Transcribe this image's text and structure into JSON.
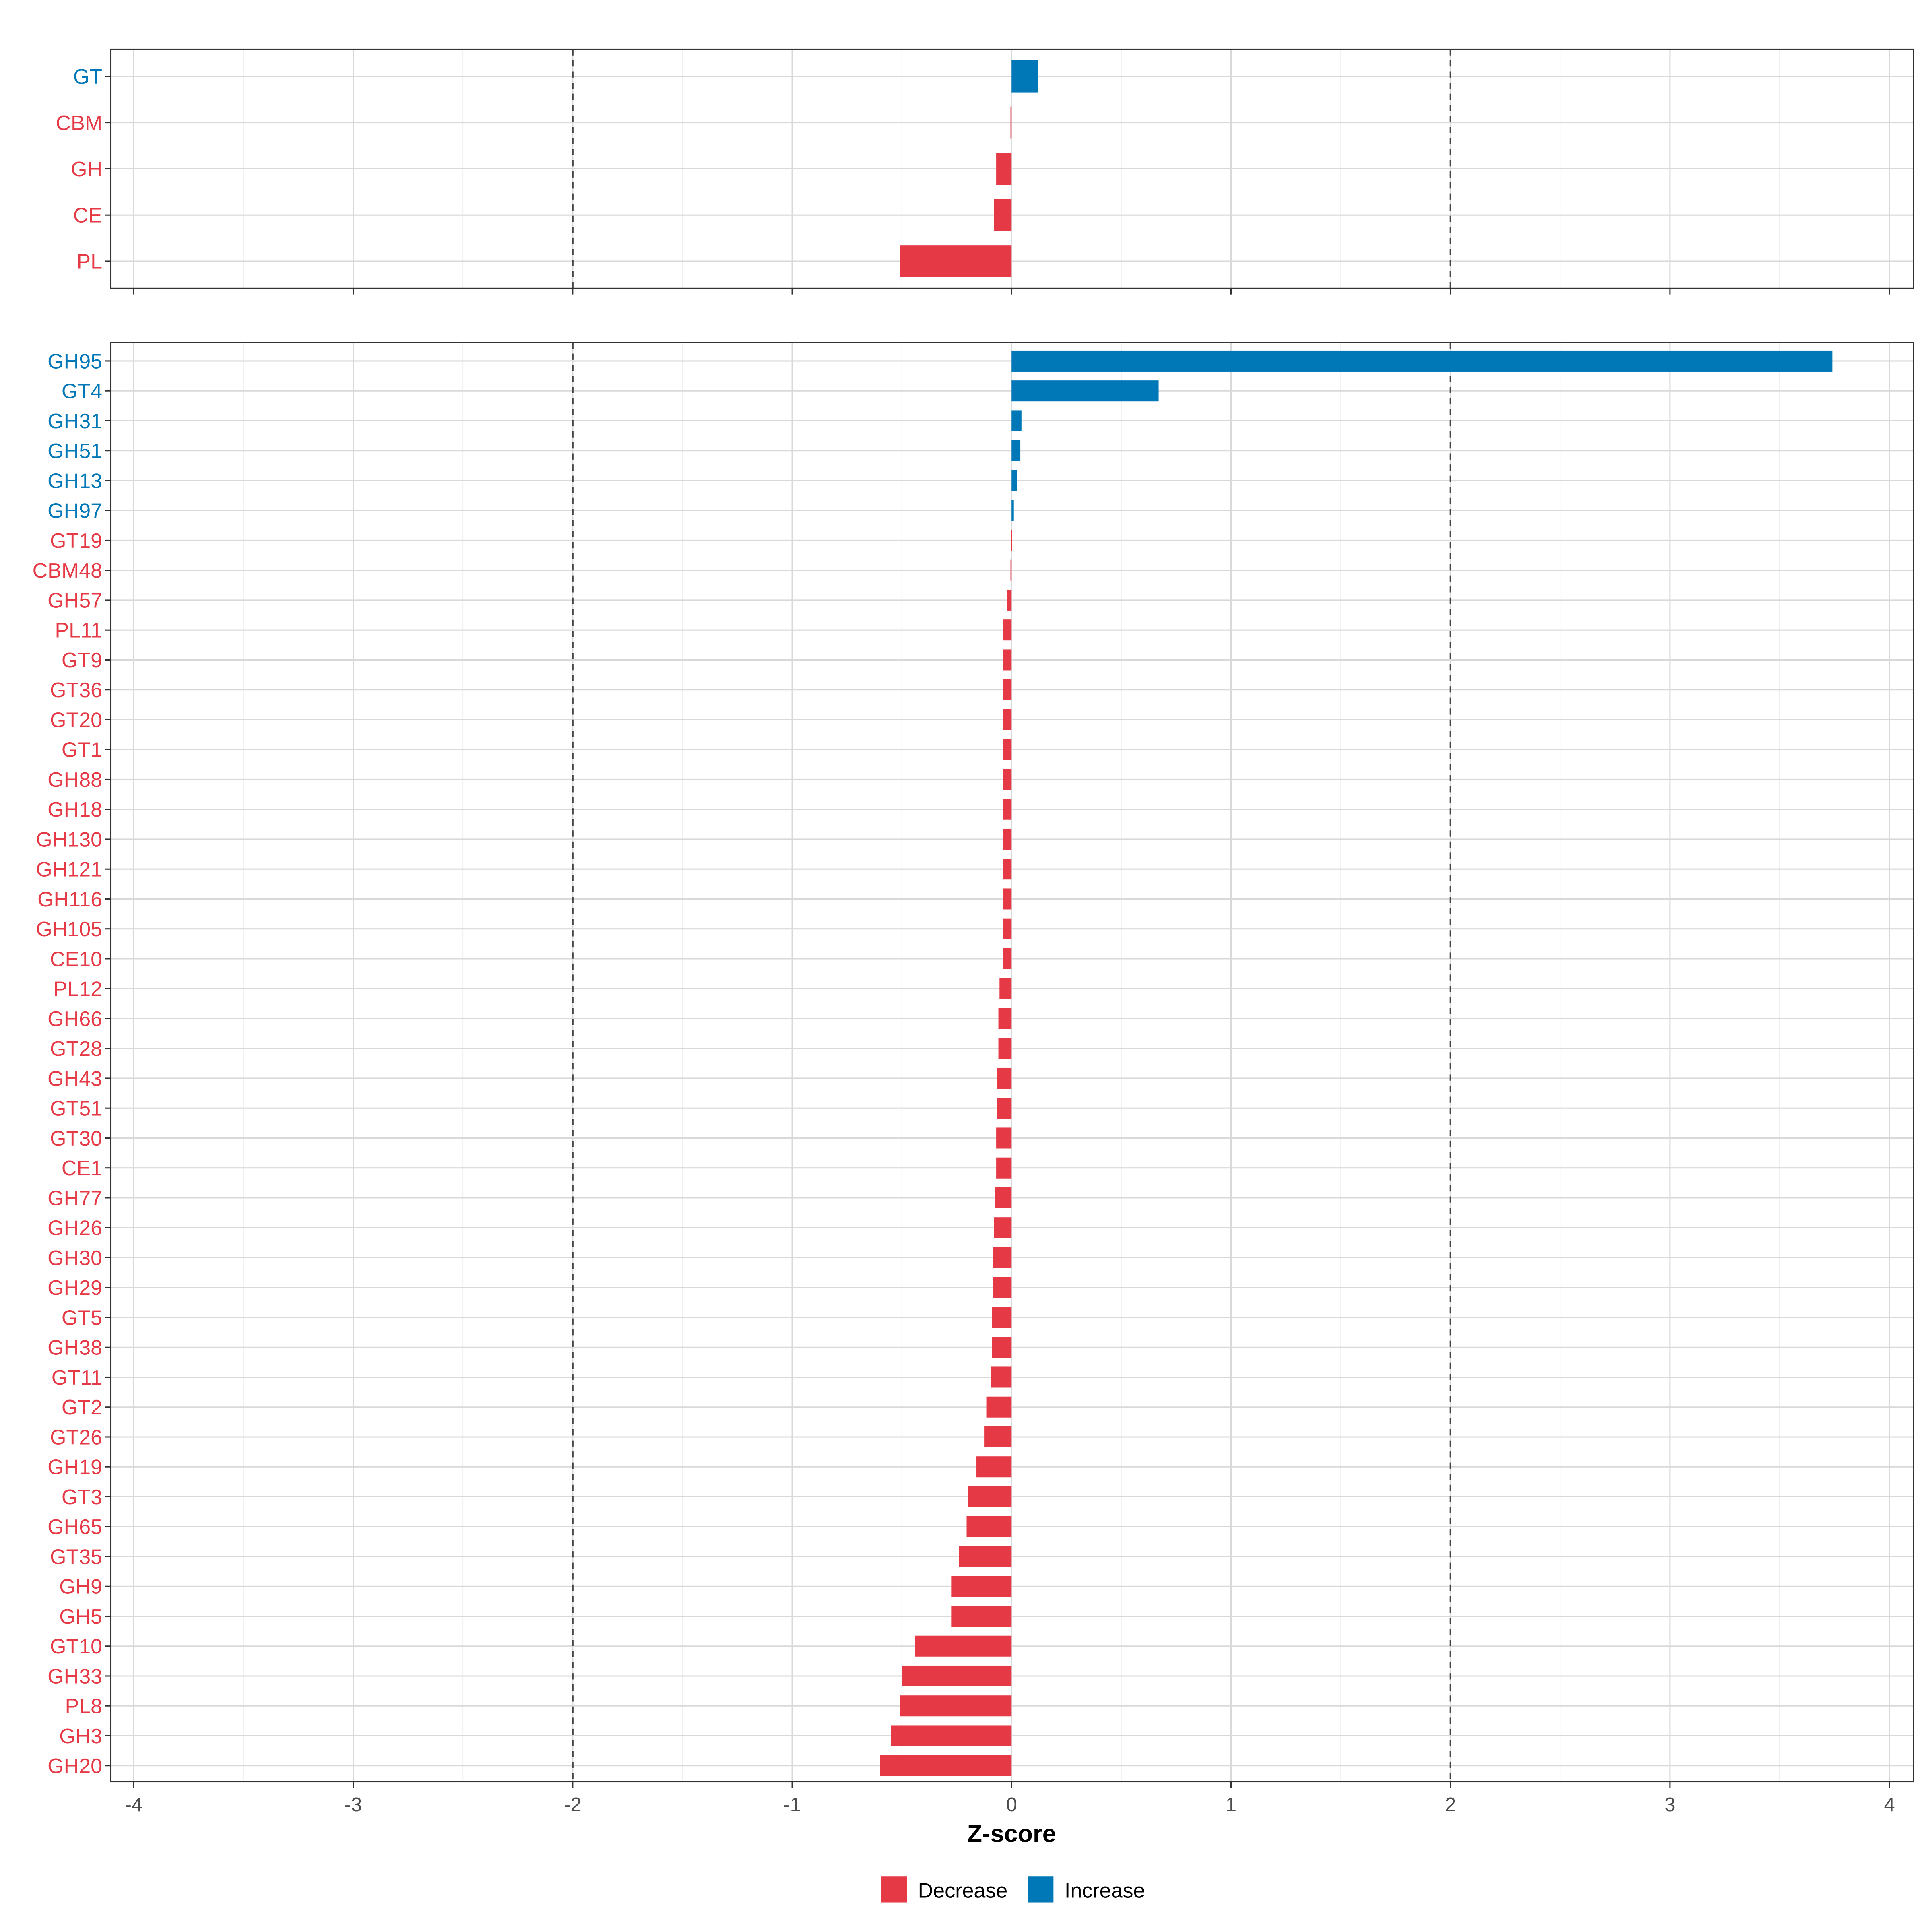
{
  "colors": {
    "decrease": "#E63946",
    "increase": "#0077B6",
    "grid": "#D9D9D9",
    "frame": "#333333"
  },
  "chart_data": [
    {
      "type": "bar",
      "orientation": "horizontal",
      "panel": "top",
      "categories": [
        "GT",
        "CBM",
        "GH",
        "CE",
        "PL"
      ],
      "values": [
        0.12,
        -0.005,
        -0.07,
        -0.08,
        -0.51
      ],
      "xlim": [
        -4,
        4
      ],
      "reference_lines": [
        -2,
        2
      ]
    },
    {
      "type": "bar",
      "orientation": "horizontal",
      "panel": "bottom",
      "categories": [
        "GH95",
        "GT4",
        "GH31",
        "GH51",
        "GH13",
        "GH97",
        "GT19",
        "CBM48",
        "GH57",
        "PL11",
        "GT9",
        "GT36",
        "GT20",
        "GT1",
        "GH88",
        "GH18",
        "GH130",
        "GH121",
        "GH116",
        "GH105",
        "CE10",
        "PL12",
        "GH66",
        "GT28",
        "GH43",
        "GT51",
        "GT30",
        "CE1",
        "GH77",
        "GH26",
        "GH30",
        "GH29",
        "GT5",
        "GH38",
        "GT11",
        "GT2",
        "GT26",
        "GH19",
        "GT3",
        "GH65",
        "GT35",
        "GH9",
        "GH5",
        "GT10",
        "GH33",
        "PL8",
        "GH3",
        "GH20"
      ],
      "values": [
        3.74,
        0.67,
        0.045,
        0.04,
        0.025,
        0.01,
        -0.001,
        -0.005,
        -0.02,
        -0.04,
        -0.04,
        -0.04,
        -0.04,
        -0.04,
        -0.04,
        -0.04,
        -0.04,
        -0.04,
        -0.04,
        -0.04,
        -0.04,
        -0.055,
        -0.06,
        -0.06,
        -0.065,
        -0.065,
        -0.07,
        -0.07,
        -0.075,
        -0.08,
        -0.085,
        -0.085,
        -0.09,
        -0.09,
        -0.095,
        -0.115,
        -0.125,
        -0.16,
        -0.2,
        -0.205,
        -0.24,
        -0.275,
        -0.275,
        -0.44,
        -0.5,
        -0.51,
        -0.55,
        -0.6
      ],
      "xlim": [
        -4,
        4
      ],
      "reference_lines": [
        -2,
        2
      ]
    }
  ],
  "x_ticks": [
    "-4",
    "-3",
    "-2",
    "-1",
    "0",
    "1",
    "2",
    "3",
    "4"
  ],
  "xlabel": "Z-score",
  "legend": {
    "position": "bottom",
    "items": [
      {
        "label": "Decrease",
        "key": "decrease"
      },
      {
        "label": "Increase",
        "key": "increase"
      }
    ]
  }
}
